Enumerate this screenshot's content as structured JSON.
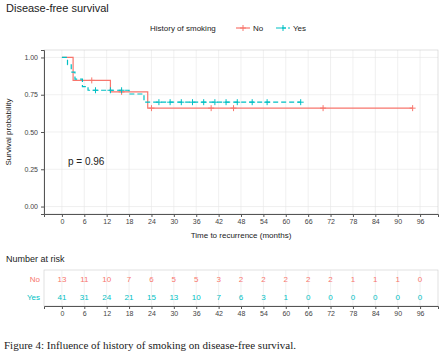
{
  "chart_data": {
    "type": "step",
    "title": "Disease-free survival",
    "x_label": "Time to recurrence (months)",
    "y_label": "Survival probability",
    "legend_title": "History of smoking",
    "legend": "top",
    "grid": true,
    "marker": "plus",
    "annotations": [
      "p = 0.96"
    ],
    "xlim": [
      -4.8,
      100.8
    ],
    "xticks": [
      0,
      6,
      12,
      18,
      24,
      30,
      36,
      42,
      48,
      54,
      60,
      66,
      72,
      78,
      84,
      90,
      96
    ],
    "ylim": [
      -0.05,
      1.05
    ],
    "yticks": [
      {
        "value": 0,
        "label": "0.00"
      },
      {
        "value": 0.25,
        "label": "0.25"
      },
      {
        "value": 0.5,
        "label": "0.50"
      },
      {
        "value": 0.75,
        "label": "0.75"
      },
      {
        "value": 1,
        "label": "1.00"
      }
    ],
    "series": [
      {
        "name": "No",
        "color": "#F8766D",
        "line_style": "solid",
        "x": [
          0,
          3,
          13,
          23,
          94
        ],
        "values": [
          1,
          0.846,
          0.769,
          0.66,
          0.66
        ],
        "censored": {
          "x": [
            8,
            16,
            24,
            40,
            46,
            70,
            94
          ],
          "values": [
            0.846,
            0.769,
            0.66,
            0.66,
            0.66,
            0.66,
            0.66
          ]
        }
      },
      {
        "name": "Yes",
        "color": "#00BFC4",
        "line_style": "dashed",
        "x": [
          0,
          1.5,
          2.5,
          3.5,
          5.5,
          7,
          18,
          22,
          64
        ],
        "values": [
          1,
          0.951,
          0.902,
          0.854,
          0.805,
          0.78,
          0.755,
          0.7,
          0.7
        ],
        "censored": {
          "x": [
            9,
            13,
            16,
            26,
            29,
            32,
            35,
            38,
            41,
            44,
            47,
            51,
            55,
            64
          ],
          "values": [
            0.78,
            0.78,
            0.78,
            0.7,
            0.7,
            0.7,
            0.7,
            0.7,
            0.7,
            0.7,
            0.7,
            0.7,
            0.7,
            0.7
          ]
        }
      }
    ],
    "risk_table": {
      "title": "Number at risk",
      "x": [
        0,
        6,
        12,
        18,
        24,
        30,
        36,
        42,
        48,
        54,
        60,
        66,
        72,
        78,
        84,
        90,
        96
      ],
      "rows": [
        {
          "name": "No",
          "color": "#F8766D",
          "values": [
            13,
            11,
            10,
            7,
            6,
            5,
            5,
            3,
            2,
            2,
            2,
            2,
            2,
            1,
            1,
            1,
            0
          ]
        },
        {
          "name": "Yes",
          "color": "#00BFC4",
          "values": [
            41,
            31,
            24,
            21,
            15,
            13,
            10,
            7,
            6,
            3,
            1,
            0,
            0,
            0,
            0,
            0,
            0
          ]
        }
      ]
    },
    "caption": "Figure 4: Influence of history of smoking on disease-free survival."
  }
}
